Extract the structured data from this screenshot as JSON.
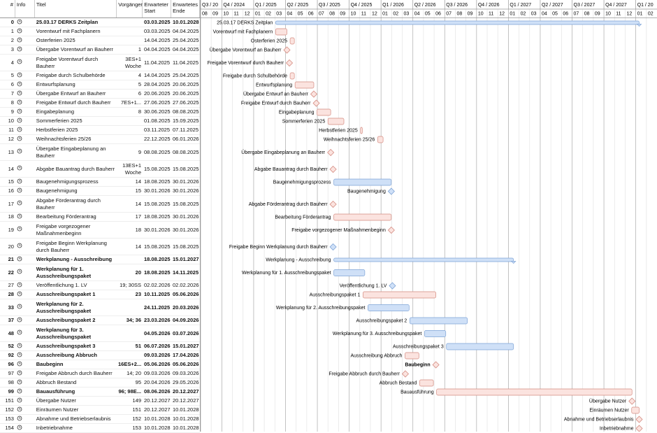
{
  "table": {
    "headers": [
      "#",
      "Info",
      "Titel",
      "Vorgänger",
      "Erwarteter Start",
      "Erwartetes Ende"
    ],
    "rows": [
      {
        "id": "0",
        "title": "25.03.17 DERKS Zeitplan",
        "pred": "",
        "start": "03.03.2025",
        "end": "10.01.2028",
        "bold": true,
        "summary": true,
        "color": "#cfe0f7"
      },
      {
        "id": "1",
        "title": "Vorentwurf mit Fachplanern",
        "pred": "",
        "start": "03.03.2025",
        "end": "04.04.2025",
        "color": "#fbe3df"
      },
      {
        "id": "2",
        "title": "Osterferien 2025",
        "pred": "",
        "start": "14.04.2025",
        "end": "25.04.2025",
        "color": "#fbe3df"
      },
      {
        "id": "3",
        "title": "Übergabe Vorentwurf an Bauherr",
        "pred": "1",
        "start": "04.04.2025",
        "end": "04.04.2025",
        "color": "#fbe3df"
      },
      {
        "id": "4",
        "title": "Freigabe Vorentwurf durch Bauherr",
        "pred": "3ES+1 Woche",
        "start": "11.04.2025",
        "end": "11.04.2025",
        "color": "#fbe3df"
      },
      {
        "id": "5",
        "title": "Freigabe durch Schulbehörde",
        "pred": "4",
        "start": "14.04.2025",
        "end": "25.04.2025",
        "color": "#fbe3df"
      },
      {
        "id": "6",
        "title": "Entwurfsplanung",
        "pred": "5",
        "start": "28.04.2025",
        "end": "20.06.2025",
        "color": "#fbe3df"
      },
      {
        "id": "7",
        "title": "Übergabe Entwurf an Bauherr",
        "pred": "6",
        "start": "20.06.2025",
        "end": "20.06.2025",
        "color": "#fbe3df"
      },
      {
        "id": "8",
        "title": "Freigabe Entwurf durch Bauherr",
        "pred": "7ES+1...",
        "start": "27.06.2025",
        "end": "27.06.2025",
        "color": "#fbe3df"
      },
      {
        "id": "9",
        "title": "Eingabeplanung",
        "pred": "8",
        "start": "30.06.2025",
        "end": "08.08.2025",
        "color": "#fbe3df"
      },
      {
        "id": "10",
        "title": "Sommerferien 2025",
        "pred": "",
        "start": "01.08.2025",
        "end": "15.09.2025",
        "color": "#fbe3df"
      },
      {
        "id": "11",
        "title": "Herbstferien 2025",
        "pred": "",
        "start": "03.11.2025",
        "end": "07.11.2025",
        "color": "#fbe3df"
      },
      {
        "id": "12",
        "title": "Weihnachtsferien 25/26",
        "pred": "",
        "start": "22.12.2025",
        "end": "06.01.2026",
        "color": "#fbe3df"
      },
      {
        "id": "13",
        "title": "Übergabe Eingabeplanung an Bauherr",
        "pred": "9",
        "start": "08.08.2025",
        "end": "08.08.2025",
        "color": "#fbe3df"
      },
      {
        "id": "14",
        "title": "Abgabe Bauantrag durch Bauherr",
        "pred": "13ES+1 Woche",
        "start": "15.08.2025",
        "end": "15.08.2025",
        "color": "#fbe3df"
      },
      {
        "id": "15",
        "title": "Baugenehmigungsprozess",
        "pred": "14",
        "start": "18.08.2025",
        "end": "30.01.2026",
        "color": "#cfe0f7"
      },
      {
        "id": "16",
        "title": "Baugenehmigung",
        "pred": "15",
        "start": "30.01.2026",
        "end": "30.01.2026",
        "color": "#cfe0f7"
      },
      {
        "id": "17",
        "title": "Abgabe Förderantrag durch Bauherr",
        "pred": "14",
        "start": "15.08.2025",
        "end": "15.08.2025",
        "color": "#fbe3df"
      },
      {
        "id": "18",
        "title": "Bearbeitung Förderantrag",
        "pred": "17",
        "start": "18.08.2025",
        "end": "30.01.2026",
        "color": "#fbe3df"
      },
      {
        "id": "19",
        "title": "Freigabe vorgezogener Maßnahmenbeginn",
        "pred": "18",
        "start": "30.01.2026",
        "end": "30.01.2026",
        "color": "#fbe3df"
      },
      {
        "id": "20",
        "title": "Freigabe Beginn Werkplanung durch Bauherr",
        "pred": "14",
        "start": "15.08.2025",
        "end": "15.08.2025",
        "color": "#cfe0f7"
      },
      {
        "id": "21",
        "title": "Werkplanung - Ausschreibung",
        "pred": "",
        "start": "18.08.2025",
        "end": "15.01.2027",
        "bold": true,
        "summary": true,
        "color": "#cfe0f7"
      },
      {
        "id": "22",
        "title": "Werkplanung für 1. Ausschreibungspaket",
        "pred": "20",
        "start": "18.08.2025",
        "end": "14.11.2025",
        "bold": true,
        "color": "#cfe0f7"
      },
      {
        "id": "27",
        "title": "Veröffentlichung 1. LV",
        "pred": "19; 30SS",
        "start": "02.02.2026",
        "end": "02.02.2026",
        "color": "#cfe0f7"
      },
      {
        "id": "28",
        "title": "Ausschreibungspaket 1",
        "pred": "23",
        "start": "10.11.2025",
        "end": "05.06.2026",
        "bold": true,
        "color": "#fbe3df"
      },
      {
        "id": "33",
        "title": "Werkplanung für 2. Ausschreibungspaket",
        "pred": "",
        "start": "24.11.2025",
        "end": "20.03.2026",
        "bold": true,
        "color": "#cfe0f7"
      },
      {
        "id": "37",
        "title": "Ausschreibungspaket 2",
        "pred": "34; 36",
        "start": "23.03.2026",
        "end": "04.09.2026",
        "bold": true,
        "color": "#cfe0f7"
      },
      {
        "id": "48",
        "title": "Werkplanung für 3. Ausschreibungspaket",
        "pred": "",
        "start": "04.05.2026",
        "end": "03.07.2026",
        "bold": true,
        "color": "#cfe0f7"
      },
      {
        "id": "52",
        "title": "Ausschreibungspaket 3",
        "pred": "51",
        "start": "06.07.2026",
        "end": "15.01.2027",
        "bold": true,
        "color": "#cfe0f7"
      },
      {
        "id": "92",
        "title": "Ausschreibung Abbruch",
        "pred": "",
        "start": "09.03.2026",
        "end": "17.04.2026",
        "bold": true,
        "color": "#fbe3df"
      },
      {
        "id": "96",
        "title": "Baubeginn",
        "pred": "16ES+2...",
        "start": "05.06.2026",
        "end": "05.06.2026",
        "bold": true,
        "color": "#fbe3df"
      },
      {
        "id": "97",
        "title": "Freigabe Abbruch durch Bauherr",
        "pred": "14; 20",
        "start": "09.03.2026",
        "end": "09.03.2026",
        "color": "#fbe3df"
      },
      {
        "id": "98",
        "title": "Abbruch Bestand",
        "pred": "95",
        "start": "20.04.2026",
        "end": "29.05.2026",
        "color": "#fbe3df"
      },
      {
        "id": "99",
        "title": "Bauausführung",
        "pred": "96; 98E...",
        "start": "08.06.2026",
        "end": "20.12.2027",
        "bold": true,
        "color": "#fbe3df"
      },
      {
        "id": "151",
        "title": "Übergabe Nutzer",
        "pred": "149",
        "start": "20.12.2027",
        "end": "20.12.2027",
        "color": "#fbe3df"
      },
      {
        "id": "152",
        "title": "Einräumen Nutzer",
        "pred": "151",
        "start": "20.12.2027",
        "end": "10.01.2028",
        "color": "#fbe3df"
      },
      {
        "id": "153",
        "title": "Abnahme und Betriebserlaubnis",
        "pred": "152",
        "start": "10.01.2028",
        "end": "10.01.2028",
        "color": "#fbe3df"
      },
      {
        "id": "154",
        "title": "Inbetriebnahme",
        "pred": "153",
        "start": "10.01.2028",
        "end": "10.01.2028",
        "color": "#fbe3df"
      }
    ]
  },
  "timeline": {
    "first_year": 2024,
    "quarters": [
      "Q3 / 20",
      "Q4 / 2024",
      "Q1 / 2025",
      "Q2 / 2025",
      "Q3 / 2025",
      "Q4 / 2025",
      "Q1 / 2026",
      "Q2 / 2026",
      "Q3 / 2026",
      "Q4 / 2026",
      "Q1 / 2027",
      "Q2 / 2027",
      "Q3 / 2027",
      "Q4 / 2027",
      "Q1 / 20"
    ],
    "months": [
      "08",
      "09",
      "10",
      "11",
      "12",
      "01",
      "02",
      "03",
      "04",
      "05",
      "06",
      "07",
      "08",
      "09",
      "10",
      "11",
      "12",
      "01",
      "02",
      "03",
      "04",
      "05",
      "06",
      "07",
      "08",
      "09",
      "10",
      "11",
      "12",
      "01",
      "02",
      "03",
      "04",
      "05",
      "06",
      "07",
      "08",
      "09",
      "10",
      "11",
      "12",
      "01",
      "02"
    ]
  }
}
